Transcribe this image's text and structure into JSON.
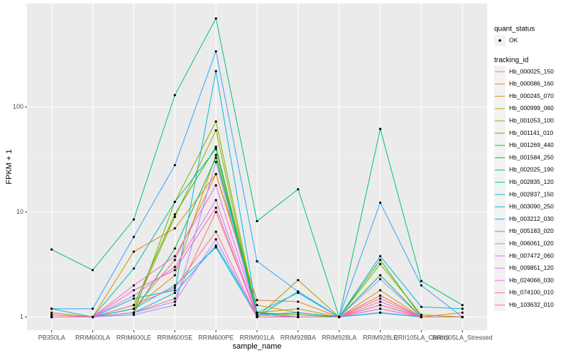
{
  "chart_data": {
    "type": "line",
    "x_label": "sample_name",
    "y_label": "FPKM + 1",
    "categories": [
      "PB350LA",
      "RRIM600LA",
      "RRIM600LE",
      "RRIM600SE",
      "RRIM600PE",
      "RRIM901LA",
      "RRIM928BA",
      "RRIM928LA",
      "RRIM928LE",
      "RRII105LA_Control",
      "RRII105LA_Stressed"
    ],
    "ylim": [
      0.75,
      970
    ],
    "yticks": [
      1,
      10,
      100
    ],
    "log_scale": "y",
    "grid": true,
    "point_color": "#000000",
    "shape_legend": {
      "title": "quant_status",
      "labels": [
        "OK"
      ]
    },
    "legend_title": "tracking_id",
    "legend_position": "right",
    "series": [
      {
        "name": "Hb_000025_150",
        "color": "#F8766D",
        "values": [
          1.05,
          1,
          1.1,
          1.5,
          10,
          1.05,
          1,
          1,
          1.2,
          1,
          1
        ]
      },
      {
        "name": "Hb_000086_160",
        "color": "#EA8331",
        "values": [
          1,
          1,
          1.2,
          3.5,
          23,
          1.45,
          1.4,
          1,
          1.5,
          1,
          1
        ]
      },
      {
        "name": "Hb_000245_070",
        "color": "#D89000",
        "values": [
          1,
          1,
          4.2,
          7,
          23,
          1.3,
          1.1,
          1,
          1.8,
          1,
          1.1
        ]
      },
      {
        "name": "Hb_000999_060",
        "color": "#C09B00",
        "values": [
          1.1,
          1,
          1.2,
          2.5,
          35,
          1.1,
          1.2,
          1,
          1.6,
          1,
          1
        ]
      },
      {
        "name": "Hb_001053_100",
        "color": "#A3A500",
        "values": [
          1,
          1,
          1.2,
          9,
          60,
          1,
          2.25,
          1,
          1.3,
          1,
          1
        ]
      },
      {
        "name": "Hb_001141_010",
        "color": "#7CAE00",
        "values": [
          1,
          1,
          1.1,
          12.5,
          73,
          1.05,
          1.1,
          1,
          3.2,
          1.05,
          1
        ]
      },
      {
        "name": "Hb_001269_440",
        "color": "#39B600",
        "values": [
          1,
          1,
          1.3,
          9.5,
          42,
          1.1,
          1.05,
          1,
          3.5,
          1,
          1
        ]
      },
      {
        "name": "Hb_001584_250",
        "color": "#00BB4E",
        "values": [
          1,
          1,
          1.1,
          4.5,
          33,
          1.1,
          1,
          1,
          2.5,
          1,
          1
        ]
      },
      {
        "name": "Hb_002025_190",
        "color": "#00BF7D",
        "values": [
          4.4,
          2.8,
          8.5,
          130,
          700,
          8.2,
          16.5,
          1,
          62,
          2.2,
          1.3
        ]
      },
      {
        "name": "Hb_002835_120",
        "color": "#00C1A3",
        "values": [
          1,
          1,
          2.9,
          12.5,
          40,
          1,
          1.75,
          1,
          1.1,
          1,
          1
        ]
      },
      {
        "name": "Hb_002837_150",
        "color": "#00BFC4",
        "values": [
          1,
          1,
          1.2,
          2,
          4.6,
          1,
          1,
          1,
          1.1,
          1,
          1
        ]
      },
      {
        "name": "Hb_003090_250",
        "color": "#00BAE0",
        "values": [
          1.2,
          1,
          1.5,
          1.8,
          220,
          1.1,
          1.7,
          1,
          3.8,
          1.25,
          1.2
        ]
      },
      {
        "name": "Hb_003212_030",
        "color": "#00B0F6",
        "values": [
          1,
          1,
          1.1,
          1.7,
          4.8,
          1.05,
          1.1,
          1,
          1.1,
          1,
          1
        ]
      },
      {
        "name": "Hb_005183_020",
        "color": "#35A2FF",
        "values": [
          1.2,
          1.2,
          5.8,
          28,
          340,
          3.4,
          1.75,
          1,
          12.3,
          2,
          1
        ]
      },
      {
        "name": "Hb_006061_020",
        "color": "#9590FF",
        "values": [
          1,
          1,
          1.05,
          1.3,
          30,
          1,
          1,
          1,
          2.3,
          1,
          1
        ]
      },
      {
        "name": "Hb_007472_060",
        "color": "#C77CFF",
        "values": [
          1,
          1,
          1.1,
          1.4,
          5.5,
          1,
          1,
          1,
          1.3,
          1,
          1
        ]
      },
      {
        "name": "Hb_009851_120",
        "color": "#E76BF3",
        "values": [
          1,
          1,
          1.6,
          3,
          13,
          1,
          1,
          1,
          1.4,
          1,
          1
        ]
      },
      {
        "name": "Hb_024066_030",
        "color": "#FA62DB",
        "values": [
          1,
          1,
          2,
          3.8,
          18,
          1.05,
          1,
          1,
          1.2,
          1,
          1
        ]
      },
      {
        "name": "Hb_074100_010",
        "color": "#FF62BC",
        "values": [
          1,
          1,
          1.8,
          2.8,
          11,
          1,
          1,
          1,
          1.6,
          1,
          1
        ]
      },
      {
        "name": "Hb_103632_010",
        "color": "#FF6C91",
        "values": [
          1.05,
          1,
          1.3,
          1.9,
          6.5,
          1,
          1,
          1,
          1.3,
          1,
          1
        ]
      }
    ]
  }
}
